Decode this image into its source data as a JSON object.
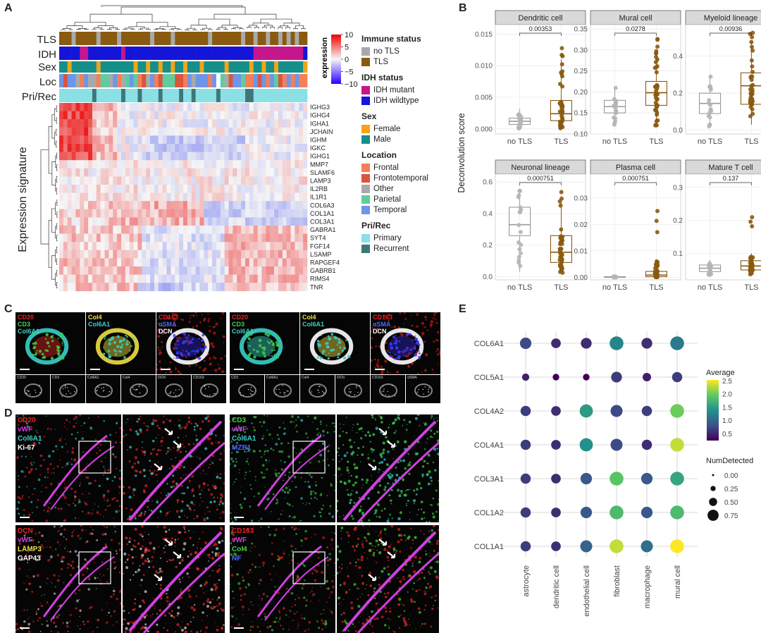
{
  "panels": {
    "a": "A",
    "b": "B",
    "c": "C",
    "d": "D",
    "e": "E"
  },
  "panelA": {
    "tracks": [
      "TLS",
      "IDH",
      "Sex",
      "Loc",
      "Pri/Rec"
    ],
    "side_label": "Expression signature",
    "genes": [
      "IGHG3",
      "IGHG4",
      "IGHA1",
      "JCHAIN",
      "IGHM",
      "IGKC",
      "IGHG1",
      "MMP7",
      "SLAMF6",
      "LAMP3",
      "IL2RB",
      "IL1R1",
      "COL6A3",
      "COL1A1",
      "COL3A1",
      "GABRA1",
      "SYT4",
      "FGF14",
      "LSAMP",
      "RAPGEF4",
      "GABRB1",
      "RIMS4",
      "TNR"
    ],
    "colorbar": {
      "title": "expression",
      "ticks": [
        "10",
        "5",
        "0",
        "−5",
        "−10"
      ]
    },
    "legends": [
      {
        "title": "Immune status",
        "items": [
          {
            "label": "no TLS",
            "color": "#a9a9a9"
          },
          {
            "label": "TLS",
            "color": "#8a5a10"
          }
        ]
      },
      {
        "title": "IDH status",
        "items": [
          {
            "label": "IDH mutant",
            "color": "#c6168d"
          },
          {
            "label": "IDH wildtype",
            "color": "#1515d8"
          }
        ]
      },
      {
        "title": "Sex",
        "items": [
          {
            "label": "Female",
            "color": "#f2a516"
          },
          {
            "label": "Male",
            "color": "#158f8a"
          }
        ]
      },
      {
        "title": "Location",
        "items": [
          {
            "label": "Frontal",
            "color": "#f47f58"
          },
          {
            "label": "Frontotemporal",
            "color": "#d9553e"
          },
          {
            "label": "Other",
            "color": "#a9a9a9"
          },
          {
            "label": "Parietal",
            "color": "#5fcc9f"
          },
          {
            "label": "Temporal",
            "color": "#6d95e8"
          }
        ]
      },
      {
        "title": "Pri/Rec",
        "items": [
          {
            "label": "Primary",
            "color": "#8be0e6"
          },
          {
            "label": "Recurrent",
            "color": "#3f7778"
          }
        ]
      }
    ]
  },
  "panelB": {
    "ylabel": "Deconvolution score",
    "xcats": [
      "no TLS",
      "TLS"
    ],
    "facets": [
      {
        "title": "Dendritic cell",
        "p": "0.00353",
        "ymax": 0.0165,
        "ticks": [
          0,
          0.005,
          0.01,
          0.015
        ],
        "ticklabels": [
          "0.000",
          "0.005",
          "0.010",
          "0.015"
        ],
        "box": [
          [
            0.0007,
            0.0012,
            0.0017,
            0.0,
            0.0032
          ],
          [
            0.0013,
            0.0024,
            0.0045,
            0.0,
            0.011
          ]
        ]
      },
      {
        "title": "Mural cell",
        "p": "0.0278",
        "ymax": 0.36,
        "ymin": 0.1,
        "ticks": [
          0.1,
          0.15,
          0.2,
          0.25,
          0.3,
          0.35
        ],
        "ticklabels": [
          "0.10",
          "0.15",
          "0.20",
          "0.25",
          "0.30",
          "0.35"
        ],
        "box": [
          [
            0.15,
            0.165,
            0.18,
            0.12,
            0.21
          ],
          [
            0.168,
            0.198,
            0.225,
            0.12,
            0.3
          ]
        ]
      },
      {
        "title": "Myeloid lineage",
        "p": "0.00936",
        "ymax": 0.57,
        "ymin": -0.02,
        "ticks": [
          0,
          0.2,
          0.4
        ],
        "ticklabels": [
          "0.0",
          "0.2",
          "0.4"
        ],
        "box": [
          [
            0.09,
            0.145,
            0.2,
            0.02,
            0.3
          ],
          [
            0.14,
            0.24,
            0.31,
            0.03,
            0.48
          ]
        ]
      },
      {
        "title": "Neuronal lineage",
        "p": "0.000751",
        "ymax": 0.65,
        "ymin": -0.02,
        "ticks": [
          0,
          0.2,
          0.4,
          0.6
        ],
        "ticklabels": [
          "0.0",
          "0.2",
          "0.4",
          "0.6"
        ],
        "box": [
          [
            0.26,
            0.33,
            0.44,
            0.03,
            0.55
          ],
          [
            0.09,
            0.155,
            0.26,
            0.02,
            0.47
          ]
        ]
      },
      {
        "title": "Plasma cell",
        "p": "0.000751",
        "ymax": 0.039,
        "ymin": -0.001,
        "ticks": [
          0,
          0.01,
          0.02,
          0.03
        ],
        "ticklabels": [
          "0.00",
          "0.01",
          "0.02",
          "0.03"
        ],
        "box": [
          [
            0.0,
            0.0001,
            0.0002,
            0.0,
            0.0003
          ],
          [
            0.0002,
            0.0008,
            0.0022,
            0.0,
            0.006
          ]
        ]
      },
      {
        "title": "Mature T cell",
        "p": "0.137",
        "ymax": 0.34,
        "ymin": 0.02,
        "ticks": [
          0.1,
          0.2,
          0.3
        ],
        "ticklabels": [
          "0.1",
          "0.2",
          "0.3"
        ],
        "box": [
          [
            0.045,
            0.055,
            0.065,
            0.035,
            0.08
          ],
          [
            0.05,
            0.062,
            0.078,
            0.035,
            0.1
          ]
        ]
      }
    ]
  },
  "panelC": {
    "images": [
      {
        "labels": [
          [
            "CD20",
            "#e52323"
          ],
          [
            "CD3",
            "#3fd23f"
          ],
          [
            "Col6A1",
            "#39d0c8"
          ]
        ]
      },
      {
        "labels": [
          [
            "Col4",
            "#f0e040"
          ],
          [
            "Col6A1",
            "#39d0c8"
          ]
        ]
      },
      {
        "labels": [
          [
            "CD163",
            "#e52323"
          ],
          [
            "αSMA",
            "#4a66ff"
          ],
          [
            "DCN",
            "#ffffff"
          ]
        ]
      },
      {
        "labels": [
          [
            "CD20",
            "#e52323"
          ],
          [
            "CD3",
            "#3fd23f"
          ],
          [
            "Col6A1",
            "#39d0c8"
          ]
        ]
      },
      {
        "labels": [
          [
            "Col4",
            "#f0e040"
          ],
          [
            "Col6A1",
            "#39d0c8"
          ]
        ]
      },
      {
        "labels": [
          [
            "CD163",
            "#e52323"
          ],
          [
            "αSMA",
            "#4a66ff"
          ],
          [
            "DCN",
            "#ffffff"
          ]
        ]
      }
    ],
    "gray": [
      "CD20",
      "CD3",
      "Col6A1",
      "Col4",
      "DCN",
      "CD163",
      "CD3",
      "Col6A1",
      "Col4",
      "DCN",
      "CD163",
      "αSMA"
    ]
  },
  "panelD": {
    "images": [
      {
        "labels": [
          [
            "CD20",
            "#e52323"
          ],
          [
            "vWF",
            "#d040e0"
          ],
          [
            "Col6A1",
            "#39d0c8"
          ],
          [
            "Ki-67",
            "#ffffff"
          ]
        ]
      },
      {
        "labels": [
          [
            "CD3",
            "#3fd23f"
          ],
          [
            "vWF",
            "#d040e0"
          ],
          [
            "Col6A1",
            "#39d0c8"
          ],
          [
            "MZB1",
            "#4a66ff"
          ]
        ]
      },
      {
        "labels": [
          [
            "DCN",
            "#e52323"
          ],
          [
            "vWF",
            "#d040e0"
          ],
          [
            "LAMP3",
            "#f0e040"
          ],
          [
            "GAP43",
            "#ffffff"
          ]
        ]
      },
      {
        "labels": [
          [
            "CD163",
            "#e52323"
          ],
          [
            "vWF",
            "#d040e0"
          ],
          [
            "Col4",
            "#3fd23f"
          ],
          [
            "NF",
            "#4a66ff"
          ]
        ]
      }
    ]
  },
  "panelE": {
    "genes": [
      "COL6A1",
      "COL5A1",
      "COL4A2",
      "COL4A1",
      "COL3A1",
      "COL1A2",
      "COL1A1"
    ],
    "cells": [
      "astrocyte",
      "dendritic cell",
      "endothelial cell",
      "fibroblast",
      "macrophage",
      "mural cell"
    ],
    "avg": [
      [
        0.8,
        0.6,
        0.6,
        1.3,
        0.6,
        1.2
      ],
      [
        0.5,
        0.3,
        0.3,
        0.7,
        0.5,
        0.7
      ],
      [
        0.7,
        0.6,
        1.5,
        0.8,
        0.7,
        2.0
      ],
      [
        0.7,
        0.6,
        1.4,
        0.8,
        0.6,
        2.3
      ],
      [
        0.7,
        0.6,
        0.9,
        1.9,
        0.9,
        1.6
      ],
      [
        0.7,
        0.6,
        0.9,
        1.8,
        0.9,
        1.8
      ],
      [
        0.7,
        0.6,
        1.0,
        2.3,
        1.1,
        2.5
      ]
    ],
    "det": [
      [
        0.6,
        0.45,
        0.55,
        0.8,
        0.55,
        0.8
      ],
      [
        0.25,
        0.2,
        0.2,
        0.55,
        0.35,
        0.5
      ],
      [
        0.5,
        0.45,
        0.75,
        0.65,
        0.5,
        0.8
      ],
      [
        0.5,
        0.45,
        0.75,
        0.65,
        0.5,
        0.8
      ],
      [
        0.5,
        0.45,
        0.6,
        0.8,
        0.6,
        0.8
      ],
      [
        0.5,
        0.45,
        0.6,
        0.8,
        0.6,
        0.8
      ],
      [
        0.5,
        0.45,
        0.65,
        0.8,
        0.65,
        0.8
      ]
    ],
    "legend_avg": {
      "title": "Average",
      "ticks": [
        "2.5",
        "2.0",
        "1.5",
        "1.0",
        "0.5"
      ]
    },
    "legend_det": {
      "title": "NumDetected",
      "labels": [
        "0.00",
        "0.25",
        "0.50",
        "0.75"
      ]
    }
  }
}
